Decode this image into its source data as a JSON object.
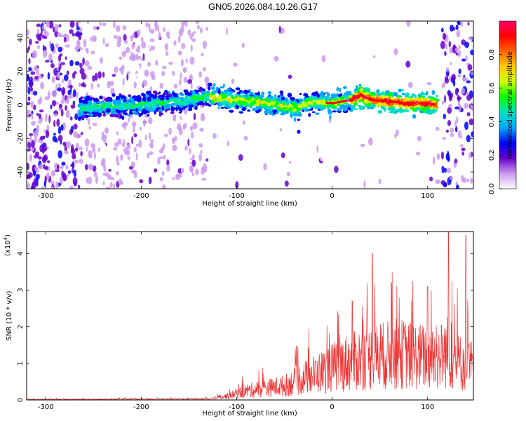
{
  "title": "GN05.2026.084.10.26.G17",
  "chart_data": [
    {
      "type": "heatmap",
      "xlabel": "Height of straight line (km)",
      "ylabel": "Frequency (Hz)",
      "xlim": [
        -320,
        148
      ],
      "ylim": [
        -50,
        50
      ],
      "xticks": [
        -300,
        -200,
        -100,
        0,
        100
      ],
      "yticks": [
        -40,
        -20,
        0,
        20,
        40
      ],
      "colorbar": {
        "label": "Normalized spectral amplitude",
        "range": [
          0,
          1
        ],
        "ticks": [
          "0.0",
          "0.2",
          "0.4",
          "0.6",
          "0.8"
        ],
        "colors": [
          "#ffffff",
          "#cc99ee",
          "#6600cc",
          "#0000ff",
          "#00aaff",
          "#00e0c0",
          "#00ff00",
          "#ccff00",
          "#ffcc00",
          "#ff6600",
          "#ff0000",
          "#ff0066"
        ]
      },
      "ridge": {
        "x": [
          -265,
          -240,
          -200,
          -160,
          -130,
          -115,
          -100,
          -80,
          -60,
          -40,
          -20,
          0,
          20,
          30,
          40,
          60,
          80,
          100,
          110
        ],
        "freq": [
          -2,
          -1,
          0,
          2,
          5,
          4,
          3,
          2,
          0,
          -2,
          2,
          1,
          3,
          6,
          3,
          2,
          1,
          1,
          0
        ]
      }
    },
    {
      "type": "line",
      "xlabel": "Height of straight line (km)",
      "ylabel": "SNR (10 * v/v)",
      "y_multiplier": "(x10^4)",
      "xlim": [
        -320,
        148
      ],
      "ylim": [
        0,
        4.6
      ],
      "xticks": [
        -300,
        -200,
        -100,
        0,
        100
      ],
      "yticks": [
        0,
        1,
        2,
        3,
        4
      ],
      "color": "#ee3333",
      "envelope": {
        "x": [
          -320,
          -200,
          -130,
          -110,
          -90,
          -70,
          -50,
          -30,
          -10,
          10,
          30,
          50,
          70,
          90,
          110,
          120,
          130,
          148
        ],
        "snr": [
          0.02,
          0.03,
          0.04,
          0.15,
          0.35,
          0.45,
          0.55,
          0.85,
          1.1,
          1.4,
          1.6,
          1.7,
          1.8,
          1.7,
          1.6,
          1.9,
          1.5,
          1.3
        ]
      },
      "peaks": [
        {
          "x": 21,
          "snr": 2.7
        },
        {
          "x": 42,
          "snr": 4.0
        },
        {
          "x": 62,
          "snr": 3.2
        },
        {
          "x": 100,
          "snr": 3.1
        },
        {
          "x": 122,
          "snr": 4.6
        },
        {
          "x": 140,
          "snr": 4.5
        }
      ]
    }
  ]
}
